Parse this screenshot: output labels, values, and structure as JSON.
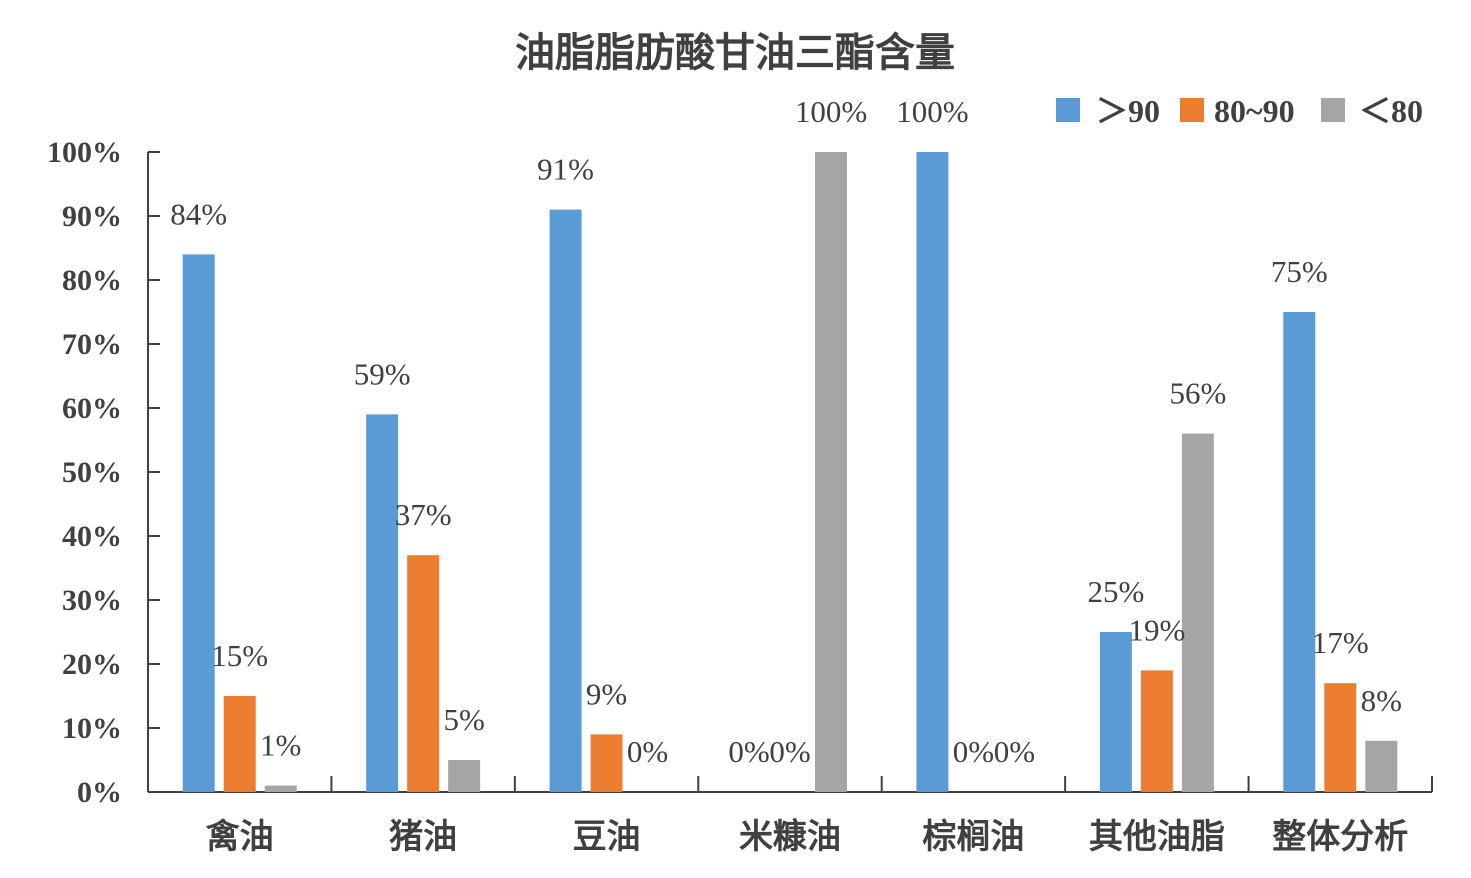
{
  "chart_data": {
    "type": "bar",
    "title": "油脂脂肪酸甘油三酯含量",
    "categories": [
      "禽油",
      "猪油",
      "豆油",
      "米糠油",
      "棕榈油",
      "其他油脂",
      "整体分析"
    ],
    "series": [
      {
        "name": "＞90",
        "color": "#5B9BD5",
        "values": [
          84,
          59,
          91,
          0,
          100,
          25,
          75
        ]
      },
      {
        "name": "80~90",
        "color": "#ED7D31",
        "values": [
          15,
          37,
          9,
          0,
          0,
          19,
          17
        ]
      },
      {
        "name": "＜80",
        "color": "#A5A5A5",
        "values": [
          1,
          5,
          0,
          100,
          0,
          56,
          8
        ]
      }
    ],
    "value_labels": [
      [
        "84%",
        "59%",
        "91%",
        "0%",
        "100%",
        "25%",
        "75%"
      ],
      [
        "15%",
        "37%",
        "9%",
        "0%",
        "0%",
        "19%",
        "17%"
      ],
      [
        "1%",
        "5%",
        "0%",
        "100%",
        "0%",
        "56%",
        "8%"
      ]
    ],
    "yticks": [
      "0%",
      "10%",
      "20%",
      "30%",
      "40%",
      "50%",
      "60%",
      "70%",
      "80%",
      "90%",
      "100%"
    ],
    "ylim": [
      0,
      100
    ],
    "xlabel": "",
    "ylabel": "",
    "grid": false,
    "legend_position": "top-right"
  }
}
